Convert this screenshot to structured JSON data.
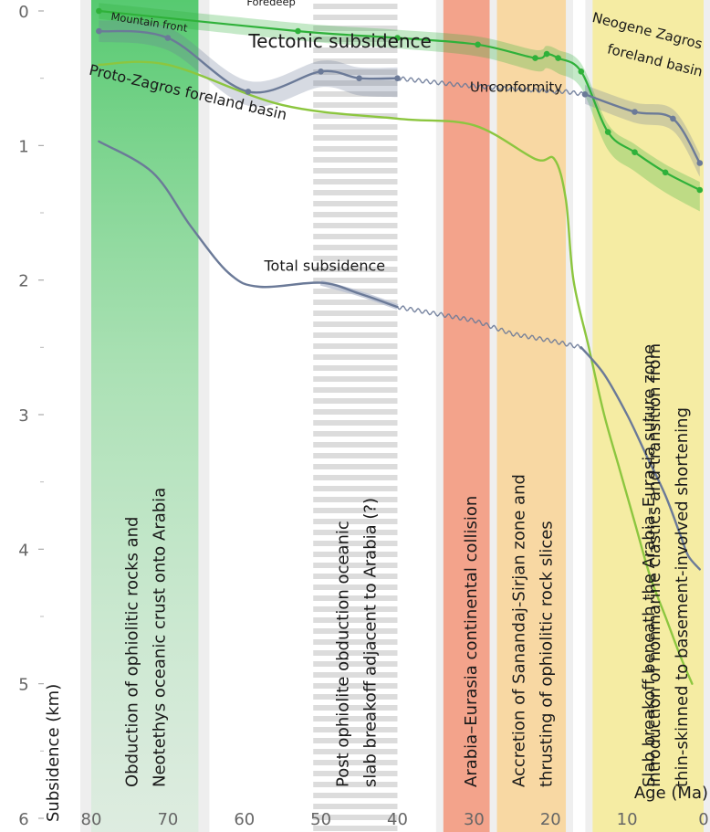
{
  "chart_data": {
    "type": "line",
    "title": "",
    "xlabel": "Age (Ma)",
    "ylabel": "Subsidence (km)",
    "xlim": [
      0,
      80
    ],
    "ylim": [
      0,
      6
    ],
    "x_reversed": true,
    "y_reversed": true,
    "x_ticks": [
      "80",
      "70",
      "60",
      "50",
      "40",
      "30",
      "20",
      "10",
      "0"
    ],
    "y_ticks": [
      "0",
      "1",
      "2",
      "3",
      "4",
      "5",
      "6"
    ],
    "grid": false,
    "bands": [
      {
        "from": 80,
        "to": 66,
        "color": "#3cc35a",
        "style": "fade-down",
        "text": "Obduction of ophiolitic rocks and\nNeotethys oceanic crust onto Arabia"
      },
      {
        "from": 51,
        "to": 40,
        "color": "#d6d6d6",
        "style": "hatched",
        "text": "Post ophiolite obduction oceanic\nslab breakoff adjacent to Arabia (?)"
      },
      {
        "from": 34,
        "to": 27,
        "color": "#f48a6a",
        "style": "solid",
        "text": "Arabia–Eurasia continental collision"
      },
      {
        "from": 27,
        "to": 18,
        "color": "#fbd08a",
        "style": "solid",
        "text": "Accretion of Sanandaj-Sirjan zone and\nthrusting of ophiolitic rock slices"
      },
      {
        "from": 14.5,
        "to": 0,
        "color": "#f7eb8a",
        "style": "solid",
        "text": "Slab breakoff beneath the Arabia–Eurasia suture zone"
      },
      {
        "from": 9.5,
        "to": 0,
        "color": "#f7eb8a",
        "style": "none",
        "text": "Introduction of nonmarine clastics and transition from\nthin-skinned to basement-involved shortening"
      }
    ],
    "series": [
      {
        "name": "Foredeep",
        "color": "#2fb13a",
        "line_style": "solid",
        "markers": true,
        "uncertainty": 0.06,
        "x": [
          79,
          53,
          40,
          29.5,
          22,
          20.5,
          19,
          16,
          12.5,
          9,
          5,
          0.5
        ],
        "y": [
          0.0,
          0.15,
          0.2,
          0.25,
          0.35,
          0.32,
          0.35,
          0.45,
          0.9,
          1.05,
          1.2,
          1.33
        ]
      },
      {
        "name": "Mountain front",
        "color": "#6b7a98",
        "line_style": "solid",
        "markers": true,
        "uncertainty": 0.08,
        "x": [
          79,
          70,
          59.5,
          50,
          45,
          40
        ],
        "y": [
          0.15,
          0.2,
          0.6,
          0.45,
          0.5,
          0.5
        ]
      },
      {
        "name": "",
        "color": "#6b7a98",
        "line_style": "wavy",
        "markers": false,
        "uncertainty": 0,
        "x": [
          40,
          32,
          25,
          18,
          15.5
        ],
        "y": [
          0.5,
          0.55,
          0.58,
          0.6,
          0.62
        ]
      },
      {
        "name": "",
        "color": "#6b7a98",
        "line_style": "solid",
        "markers": true,
        "uncertainty": 0.07,
        "x": [
          15.5,
          9,
          4,
          0.5
        ],
        "y": [
          0.62,
          0.75,
          0.8,
          1.13
        ]
      },
      {
        "name": "Proto-Zagros foreland basin",
        "color": "#8cc63f",
        "line_style": "solid",
        "markers": false,
        "uncertainty": 0,
        "x": [
          79,
          70,
          55,
          40,
          30,
          22,
          19.5,
          18,
          17,
          15,
          13,
          11,
          9,
          7,
          5,
          3,
          1.5
        ],
        "y": [
          0.4,
          0.4,
          0.7,
          0.8,
          0.85,
          1.1,
          1.1,
          1.4,
          2.0,
          2.5,
          3.0,
          3.4,
          3.8,
          4.2,
          4.5,
          4.8,
          5.0
        ]
      },
      {
        "name": "Total subsidence",
        "color": "#6b7a98",
        "line_style": "solid",
        "markers": false,
        "uncertainty": 0,
        "x": [
          79,
          72,
          67,
          62,
          58,
          50,
          45,
          40
        ],
        "y": [
          0.97,
          1.2,
          1.6,
          1.95,
          2.05,
          2.02,
          2.1,
          2.2
        ],
        "highlight_from": 50
      },
      {
        "name": "",
        "color": "#6b7a98",
        "line_style": "wavy",
        "markers": false,
        "uncertainty": 0,
        "x": [
          40,
          30,
          25,
          20,
          16
        ],
        "y": [
          2.2,
          2.3,
          2.4,
          2.45,
          2.5
        ]
      },
      {
        "name": "",
        "color": "#6b7a98",
        "line_style": "solid",
        "markers": false,
        "uncertainty": 0,
        "x": [
          16,
          13,
          10,
          7.5,
          5,
          3,
          2,
          0.5
        ],
        "y": [
          2.5,
          2.7,
          3.0,
          3.3,
          3.6,
          3.9,
          4.05,
          4.15
        ]
      }
    ],
    "annotations": [
      {
        "text": "Foredeep",
        "x": 56.5,
        "y": -0.04,
        "size": 11.5,
        "rotate": 0
      },
      {
        "text": "Mountain front",
        "x": 72.5,
        "y": 0.11,
        "size": 11.5,
        "rotate": 9
      },
      {
        "text": "Tectonic subsidence",
        "x": 47.5,
        "y": 0.27,
        "size": 20,
        "rotate": 0
      },
      {
        "text": "Proto-Zagros foreland basin",
        "x": 67.5,
        "y": 0.64,
        "size": 16,
        "rotate": 13
      },
      {
        "text": "Unconformity",
        "x": 24.5,
        "y": 0.6,
        "size": 15,
        "rotate": 0
      },
      {
        "text": "Total subsidence",
        "x": 49.5,
        "y": 1.93,
        "size": 16,
        "rotate": 0
      },
      {
        "text": "Neogene Zagros",
        "x": 7.5,
        "y": 0.18,
        "size": 15,
        "rotate": 14
      },
      {
        "text": "foreland basin",
        "x": 6.5,
        "y": 0.4,
        "size": 15,
        "rotate": 14
      }
    ]
  }
}
